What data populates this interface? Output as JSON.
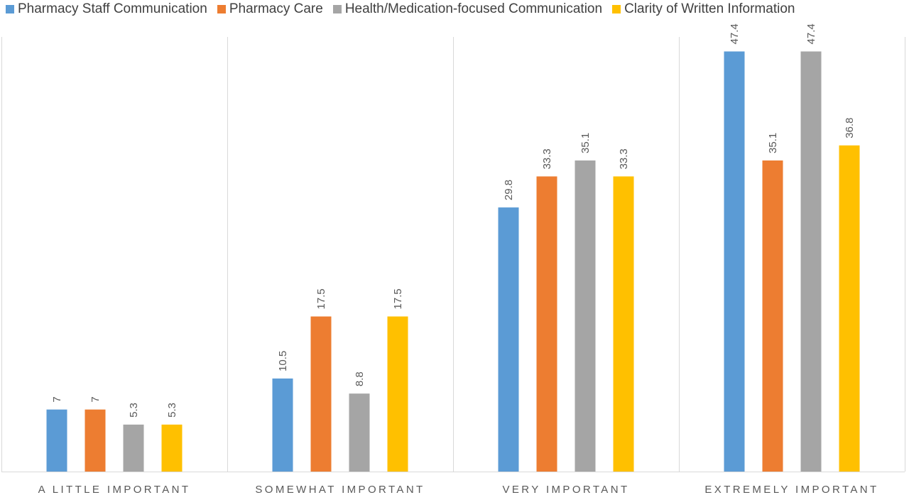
{
  "chart_data": {
    "type": "bar",
    "categories": [
      "A LITTLE IMPORTANT",
      "SOMEWHAT IMPORTANT",
      "VERY IMPORTANT",
      "EXTREMELY IMPORTANT"
    ],
    "series": [
      {
        "name": "Pharmacy Staff Communication",
        "color": "#5b9bd5",
        "values": [
          7,
          10.5,
          29.8,
          47.4
        ],
        "labels": [
          "7",
          "10.5",
          "29.8",
          "47.4"
        ]
      },
      {
        "name": "Pharmacy Care",
        "color": "#ed7d31",
        "values": [
          7,
          17.5,
          33.3,
          35.1
        ],
        "labels": [
          "7",
          "17.5",
          "33.3",
          "35.1"
        ]
      },
      {
        "name": "Health/Medication-focused Communication",
        "color": "#a5a5a5",
        "values": [
          5.3,
          8.8,
          35.1,
          47.4
        ],
        "labels": [
          "5.3",
          "8.8",
          "35.1",
          "47.4"
        ]
      },
      {
        "name": "Clarity of Written Information",
        "color": "#ffc000",
        "values": [
          5.3,
          17.5,
          33.3,
          36.8
        ],
        "labels": [
          "5.3",
          "17.5",
          "33.3",
          "36.8"
        ]
      }
    ],
    "ylim": [
      0,
      50
    ],
    "legend_position": "top",
    "data_labels": "rotated",
    "grid": false,
    "category_separators": true
  }
}
